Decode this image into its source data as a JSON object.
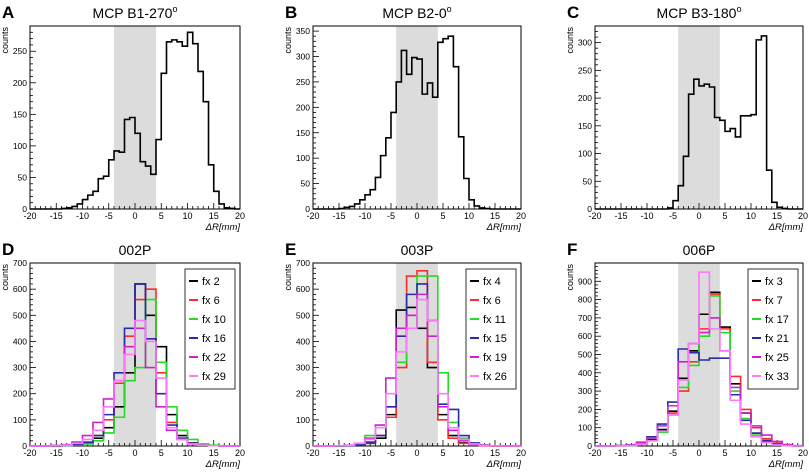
{
  "figure": {
    "description_free": true
  },
  "chart_data": [
    {
      "id": "A",
      "panel_letter": "A",
      "title": "MCP B1-270",
      "title_superscript": "o",
      "type": "histogram",
      "xlabel": "ΔR[mm]",
      "ylabel": "counts",
      "xlim": [
        -20,
        20
      ],
      "ylim": [
        0,
        290
      ],
      "xticks": [
        -20,
        -15,
        -10,
        -5,
        0,
        5,
        10,
        15,
        20
      ],
      "yticks": [
        0,
        50,
        100,
        150,
        200,
        250
      ],
      "shaded_region": [
        -4,
        4
      ],
      "bin_edges": [
        -20,
        -19,
        -18,
        -17,
        -16,
        -15,
        -14,
        -13,
        -12,
        -11,
        -10,
        -9,
        -8,
        -7,
        -6,
        -5,
        -4,
        -3,
        -2,
        -1,
        0,
        1,
        2,
        3,
        4,
        5,
        6,
        7,
        8,
        9,
        10,
        11,
        12,
        13,
        14,
        15,
        16,
        17,
        18,
        19,
        20
      ],
      "series": [
        {
          "name": "MCP B1-270",
          "color": "#000000",
          "values": [
            0,
            0,
            0,
            0,
            0,
            0,
            1,
            2,
            4,
            8,
            15,
            22,
            28,
            48,
            52,
            78,
            92,
            90,
            142,
            145,
            120,
            75,
            68,
            55,
            110,
            215,
            265,
            268,
            265,
            258,
            280,
            262,
            218,
            170,
            70,
            28,
            8,
            2,
            1,
            0
          ]
        }
      ]
    },
    {
      "id": "B",
      "panel_letter": "B",
      "title": "MCP B2-0",
      "title_superscript": "o",
      "type": "histogram",
      "xlabel": "ΔR[mm]",
      "ylabel": "counts",
      "xlim": [
        -20,
        20
      ],
      "ylim": [
        0,
        360
      ],
      "xticks": [
        -20,
        -15,
        -10,
        -5,
        0,
        5,
        10,
        15,
        20
      ],
      "yticks": [
        0,
        50,
        100,
        150,
        200,
        250,
        300,
        350
      ],
      "shaded_region": [
        -4,
        4
      ],
      "bin_edges": [
        -20,
        -19,
        -18,
        -17,
        -16,
        -15,
        -14,
        -13,
        -12,
        -11,
        -10,
        -9,
        -8,
        -7,
        -6,
        -5,
        -4,
        -3,
        -2,
        -1,
        0,
        1,
        2,
        3,
        4,
        5,
        6,
        7,
        8,
        9,
        10,
        11,
        12,
        13,
        14,
        15,
        16,
        17,
        18,
        19,
        20
      ],
      "series": [
        {
          "name": "MCP B2-0",
          "color": "#000000",
          "values": [
            0,
            0,
            0,
            0,
            0,
            1,
            3,
            5,
            10,
            18,
            28,
            38,
            62,
            105,
            140,
            190,
            250,
            312,
            265,
            298,
            295,
            226,
            248,
            220,
            328,
            335,
            340,
            280,
            142,
            60,
            18,
            6,
            2,
            1,
            0,
            0,
            0,
            0,
            0,
            0
          ]
        }
      ]
    },
    {
      "id": "C",
      "panel_letter": "C",
      "title": "MCP B3-180",
      "title_superscript": "o",
      "type": "histogram",
      "xlabel": "ΔR[mm]",
      "ylabel": "counts",
      "xlim": [
        -20,
        20
      ],
      "ylim": [
        0,
        330
      ],
      "xticks": [
        -20,
        -15,
        -10,
        -5,
        0,
        5,
        10,
        15,
        20
      ],
      "yticks": [
        0,
        50,
        100,
        150,
        200,
        250,
        300
      ],
      "shaded_region": [
        -4,
        4
      ],
      "bin_edges": [
        -20,
        -19,
        -18,
        -17,
        -16,
        -15,
        -14,
        -13,
        -12,
        -11,
        -10,
        -9,
        -8,
        -7,
        -6,
        -5,
        -4,
        -3,
        -2,
        -1,
        0,
        1,
        2,
        3,
        4,
        5,
        6,
        7,
        8,
        9,
        10,
        11,
        12,
        13,
        14,
        15,
        16,
        17,
        18,
        19,
        20
      ],
      "series": [
        {
          "name": "MCP B3-180",
          "color": "#000000",
          "values": [
            0,
            0,
            0,
            0,
            0,
            0,
            0,
            0,
            0,
            0,
            0,
            0,
            0,
            0,
            2,
            15,
            42,
            95,
            207,
            234,
            222,
            225,
            220,
            165,
            160,
            140,
            145,
            130,
            168,
            168,
            170,
            305,
            312,
            70,
            12,
            3,
            1,
            0,
            0,
            0
          ]
        }
      ]
    },
    {
      "id": "D",
      "panel_letter": "D",
      "title": "002P",
      "type": "histogram",
      "xlabel": "ΔR[mm]",
      "ylabel": "counts",
      "xlim": [
        -20,
        20
      ],
      "ylim": [
        0,
        700
      ],
      "xticks": [
        -20,
        -15,
        -10,
        -5,
        0,
        5,
        10,
        15,
        20
      ],
      "yticks": [
        0,
        100,
        200,
        300,
        400,
        500,
        600,
        700
      ],
      "shaded_region": [
        -4,
        4
      ],
      "legend_position": "top-right",
      "bin_edges": [
        -20,
        -18,
        -16,
        -14,
        -12,
        -10,
        -8,
        -6,
        -4,
        -2,
        0,
        2,
        4,
        6,
        8,
        10,
        12,
        14,
        16,
        18,
        20
      ],
      "series": [
        {
          "name": "fx 2",
          "color": "#000000",
          "values": [
            0,
            0,
            0,
            2,
            5,
            12,
            30,
            70,
            150,
            280,
            620,
            500,
            380,
            120,
            40,
            12,
            5,
            2,
            0,
            0
          ]
        },
        {
          "name": "fx 6",
          "color": "#ff2a2a",
          "values": [
            0,
            0,
            0,
            2,
            6,
            15,
            40,
            100,
            240,
            420,
            560,
            600,
            280,
            90,
            30,
            10,
            4,
            1,
            0,
            0
          ]
        },
        {
          "name": "fx 10",
          "color": "#22dd22",
          "values": [
            0,
            0,
            0,
            1,
            3,
            8,
            20,
            50,
            110,
            250,
            300,
            560,
            320,
            150,
            60,
            25,
            8,
            3,
            1,
            0
          ]
        },
        {
          "name": "fx 16",
          "color": "#2a2aaa",
          "values": [
            0,
            0,
            0,
            2,
            5,
            14,
            40,
            120,
            280,
            450,
            620,
            410,
            200,
            80,
            30,
            10,
            3,
            1,
            0,
            0
          ]
        },
        {
          "name": "fx 22",
          "color": "#cc22cc",
          "values": [
            0,
            0,
            2,
            5,
            15,
            40,
            90,
            180,
            250,
            380,
            450,
            300,
            150,
            60,
            25,
            8,
            3,
            1,
            0,
            0
          ]
        },
        {
          "name": "fx 29",
          "color": "#ff77ff",
          "values": [
            0,
            0,
            1,
            3,
            10,
            25,
            60,
            150,
            250,
            350,
            480,
            400,
            260,
            70,
            25,
            8,
            3,
            1,
            0,
            0
          ]
        }
      ]
    },
    {
      "id": "E",
      "panel_letter": "E",
      "title": "003P",
      "type": "histogram",
      "xlabel": "ΔR[mm]",
      "ylabel": "counts",
      "xlim": [
        -20,
        20
      ],
      "ylim": [
        0,
        700
      ],
      "xticks": [
        -20,
        -15,
        -10,
        -5,
        0,
        5,
        10,
        15,
        20
      ],
      "yticks": [
        0,
        100,
        200,
        300,
        400,
        500,
        600,
        700
      ],
      "shaded_region": [
        -4,
        4
      ],
      "legend_position": "top-right",
      "bin_edges": [
        -20,
        -18,
        -16,
        -14,
        -12,
        -10,
        -8,
        -6,
        -4,
        -2,
        0,
        2,
        4,
        6,
        8,
        10,
        12,
        14,
        16,
        18,
        20
      ],
      "series": [
        {
          "name": "fx 4",
          "color": "#000000",
          "values": [
            0,
            0,
            0,
            1,
            3,
            10,
            30,
            120,
            520,
            530,
            450,
            300,
            120,
            40,
            12,
            4,
            1,
            0,
            0,
            0
          ]
        },
        {
          "name": "fx 6",
          "color": "#ff2a2a",
          "values": [
            0,
            0,
            0,
            1,
            4,
            12,
            40,
            110,
            300,
            650,
            670,
            320,
            100,
            30,
            10,
            3,
            1,
            0,
            0,
            0
          ]
        },
        {
          "name": "fx 11",
          "color": "#22dd22",
          "values": [
            0,
            0,
            0,
            2,
            8,
            40,
            70,
            150,
            320,
            500,
            650,
            650,
            280,
            90,
            30,
            10,
            3,
            1,
            0,
            0
          ]
        },
        {
          "name": "fx 15",
          "color": "#2a2aaa",
          "values": [
            0,
            0,
            0,
            1,
            4,
            15,
            40,
            150,
            420,
            580,
            620,
            480,
            160,
            140,
            40,
            12,
            4,
            1,
            0,
            0
          ]
        },
        {
          "name": "fx 19",
          "color": "#cc22cc",
          "values": [
            0,
            0,
            1,
            3,
            10,
            30,
            80,
            260,
            450,
            500,
            580,
            420,
            150,
            60,
            20,
            6,
            2,
            1,
            0,
            0
          ]
        },
        {
          "name": "fx 26",
          "color": "#ff77ff",
          "values": [
            0,
            0,
            1,
            3,
            10,
            25,
            70,
            200,
            360,
            450,
            560,
            480,
            200,
            70,
            25,
            8,
            3,
            1,
            0,
            0
          ]
        }
      ]
    },
    {
      "id": "F",
      "panel_letter": "F",
      "title": "006P",
      "type": "histogram",
      "xlabel": "ΔR[mm]",
      "ylabel": "counts",
      "xlim": [
        -20,
        20
      ],
      "ylim": [
        0,
        1000
      ],
      "xticks": [
        -20,
        -15,
        -10,
        -5,
        0,
        5,
        10,
        15,
        20
      ],
      "yticks": [
        0,
        100,
        200,
        300,
        400,
        500,
        600,
        700,
        800,
        900
      ],
      "shaded_region": [
        -4,
        4
      ],
      "legend_position": "top-right",
      "bin_edges": [
        -20,
        -18,
        -16,
        -14,
        -12,
        -10,
        -8,
        -6,
        -4,
        -2,
        0,
        2,
        4,
        6,
        8,
        10,
        12,
        14,
        16,
        18,
        20
      ],
      "series": [
        {
          "name": "fx 3",
          "color": "#000000",
          "values": [
            0,
            0,
            2,
            5,
            15,
            35,
            90,
            190,
            370,
            520,
            720,
            840,
            650,
            340,
            180,
            70,
            25,
            8,
            2,
            0
          ]
        },
        {
          "name": "fx 7",
          "color": "#ff2a2a",
          "values": [
            0,
            0,
            1,
            4,
            12,
            30,
            80,
            180,
            300,
            460,
            640,
            830,
            640,
            380,
            200,
            100,
            40,
            15,
            4,
            1
          ]
        },
        {
          "name": "fx 17",
          "color": "#22dd22",
          "values": [
            0,
            0,
            1,
            3,
            10,
            28,
            75,
            170,
            320,
            440,
            600,
            820,
            620,
            300,
            150,
            60,
            20,
            6,
            2,
            0
          ]
        },
        {
          "name": "fx 21",
          "color": "#2a2aaa",
          "values": [
            0,
            0,
            2,
            6,
            20,
            50,
            120,
            240,
            530,
            510,
            470,
            480,
            480,
            280,
            140,
            70,
            30,
            10,
            3,
            1
          ]
        },
        {
          "name": "fx 25",
          "color": "#cc22cc",
          "values": [
            0,
            0,
            2,
            5,
            18,
            45,
            110,
            220,
            460,
            560,
            620,
            700,
            520,
            320,
            180,
            110,
            60,
            25,
            8,
            2
          ]
        },
        {
          "name": "fx 33",
          "color": "#ff77ff",
          "values": [
            0,
            0,
            1,
            3,
            10,
            28,
            80,
            170,
            360,
            560,
            950,
            640,
            520,
            250,
            120,
            50,
            18,
            6,
            2,
            0
          ]
        }
      ]
    }
  ]
}
